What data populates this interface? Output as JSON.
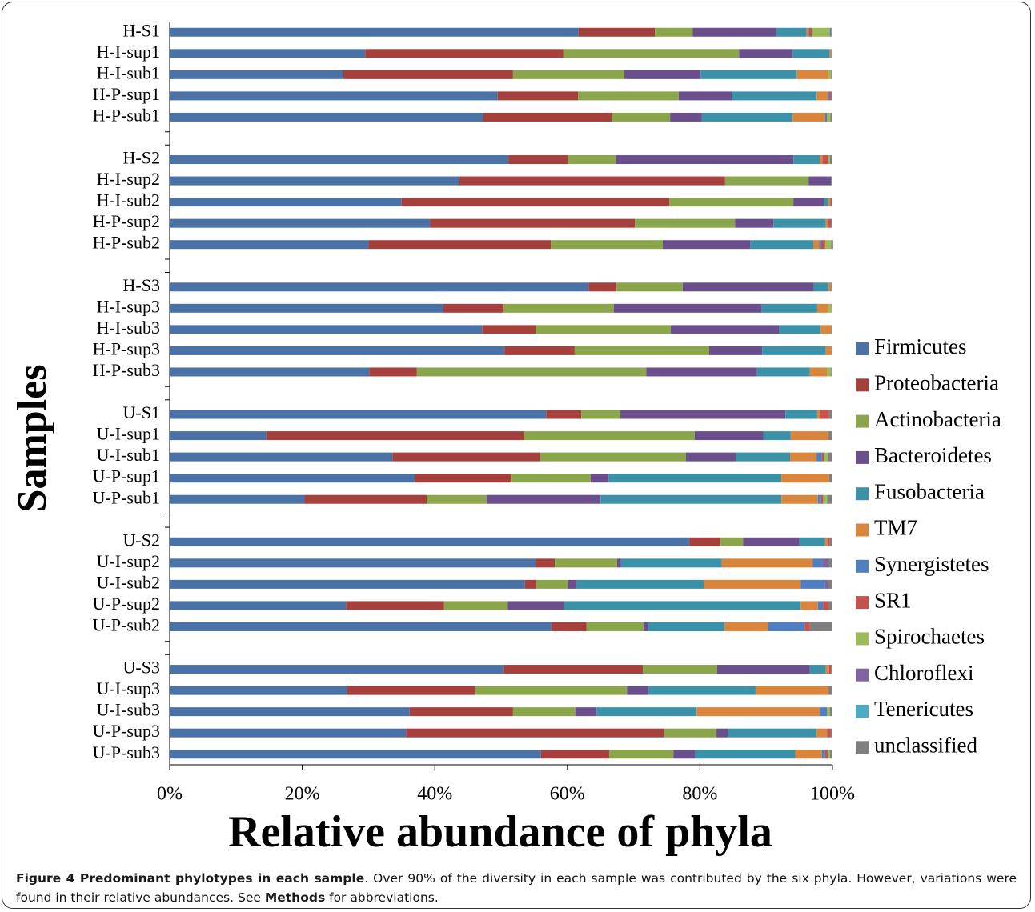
{
  "chart_data": {
    "type": "stacked_barh",
    "xlabel": "Relative abundance of phyla",
    "ylabel": "Samples",
    "categories": [
      "H-S1",
      "H-I-sup1",
      "H-I-sub1",
      "H-P-sup1",
      "H-P-sub1",
      null,
      "H-S2",
      "H-I-sup2",
      "H-I-sub2",
      "H-P-sup2",
      "H-P-sub2",
      null,
      "H-S3",
      "H-I-sup3",
      "H-I-sub3",
      "H-P-sup3",
      "H-P-sub3",
      null,
      "U-S1",
      "U-I-sup1",
      "U-I-sub1",
      "U-P-sup1",
      "U-P-sub1",
      null,
      "U-S2",
      "U-I-sup2",
      "U-I-sub2",
      "U-P-sup2",
      "U-P-sub2",
      null,
      "U-S3",
      "U-I-sup3",
      "U-I-sub3",
      "U-P-sup3",
      "U-P-sub3"
    ],
    "xlim": [
      0,
      100
    ],
    "xticks": [
      {
        "value": 0,
        "label": "0%"
      },
      {
        "value": 20,
        "label": "20%"
      },
      {
        "value": 40,
        "label": "40%"
      },
      {
        "value": 60,
        "label": "60%"
      },
      {
        "value": 80,
        "label": "80%"
      },
      {
        "value": 100,
        "label": "100%"
      }
    ],
    "legend": "right",
    "series": [
      {
        "name": "Firmicutes",
        "color": "#4a72a6",
        "values": [
          61.7,
          29.5,
          26.2,
          49.5,
          47.3,
          null,
          51.1,
          43.7,
          35.0,
          39.3,
          30.0,
          null,
          63.2,
          41.3,
          47.2,
          50.5,
          30.1,
          null,
          56.8,
          14.6,
          33.6,
          37.0,
          20.3,
          null,
          78.4,
          55.2,
          53.6,
          26.6,
          57.6,
          null,
          50.4,
          26.8,
          36.2,
          35.7,
          56.0
        ]
      },
      {
        "name": "Proteobacteria",
        "color": "#a5403d",
        "values": [
          11.5,
          29.9,
          25.6,
          12.1,
          19.4,
          null,
          9.0,
          40.1,
          40.4,
          30.9,
          27.5,
          null,
          4.2,
          9.1,
          8.0,
          10.6,
          7.2,
          null,
          5.3,
          38.9,
          22.3,
          14.6,
          18.5,
          null,
          4.7,
          2.9,
          1.7,
          14.8,
          5.3,
          null,
          21.0,
          19.3,
          15.6,
          38.9,
          10.3
        ]
      },
      {
        "name": "Actinobacteria",
        "color": "#8aa54a",
        "values": [
          5.7,
          26.5,
          16.8,
          15.2,
          8.8,
          null,
          7.2,
          12.6,
          18.7,
          15.1,
          16.9,
          null,
          10.0,
          16.6,
          20.4,
          20.3,
          34.6,
          null,
          5.9,
          25.7,
          22.0,
          11.9,
          9.0,
          null,
          3.4,
          9.4,
          4.8,
          9.6,
          8.6,
          null,
          11.2,
          22.9,
          9.4,
          7.9,
          9.7
        ]
      },
      {
        "name": "Bacteroidetes",
        "color": "#6a4f8c",
        "values": [
          12.6,
          8.1,
          11.5,
          8.0,
          4.8,
          null,
          26.8,
          3.4,
          4.6,
          5.8,
          13.2,
          null,
          19.8,
          22.3,
          16.4,
          8.0,
          16.7,
          null,
          24.9,
          10.4,
          7.5,
          2.7,
          17.2,
          null,
          8.5,
          0.6,
          1.3,
          8.5,
          0.7,
          null,
          14.0,
          3.2,
          3.2,
          1.7,
          3.3
        ]
      },
      {
        "name": "Fusobacteria",
        "color": "#3b92a8",
        "values": [
          4.6,
          5.6,
          14.5,
          12.8,
          13.7,
          null,
          4.0,
          0,
          0.7,
          7.9,
          9.5,
          null,
          2.2,
          8.4,
          6.2,
          9.6,
          8.0,
          null,
          4.8,
          4.1,
          8.2,
          26.1,
          27.3,
          null,
          3.9,
          15.2,
          19.2,
          35.7,
          11.5,
          null,
          2.4,
          16.2,
          15.1,
          13.4,
          15.1
        ]
      },
      {
        "name": "TM7",
        "color": "#d9853b",
        "values": [
          0.3,
          0.3,
          4.8,
          1.7,
          4.9,
          null,
          0.4,
          0,
          0.3,
          0.3,
          0.9,
          null,
          0.4,
          1.7,
          1.6,
          0.9,
          2.6,
          null,
          0.4,
          5.7,
          4.0,
          7.2,
          5.5,
          null,
          0.4,
          13.7,
          14.6,
          2.6,
          6.6,
          null,
          0.5,
          11.0,
          18.6,
          1.6,
          4.0
        ]
      },
      {
        "name": "Synergistetes",
        "color": "#4f7fc1",
        "values": [
          0.1,
          0,
          0,
          0.2,
          0.3,
          null,
          0,
          0,
          0,
          0,
          0.3,
          null,
          0,
          0,
          0,
          0,
          0,
          null,
          0,
          0,
          0.8,
          0,
          0.5,
          null,
          0,
          1.5,
          3.7,
          0.8,
          5.5,
          null,
          0,
          0,
          1.1,
          0,
          0.5
        ]
      },
      {
        "name": "SR1",
        "color": "#c8504d",
        "values": [
          0.4,
          0,
          0,
          0.2,
          0,
          null,
          0.8,
          0,
          0.2,
          0.4,
          0.6,
          null,
          0,
          0,
          0,
          0,
          0,
          null,
          1.4,
          0,
          0.3,
          0,
          0.3,
          null,
          0.3,
          0,
          0,
          0.8,
          0.8,
          null,
          0.3,
          0,
          0,
          0.5,
          0.4
        ]
      },
      {
        "name": "Spirochaetes",
        "color": "#9bbb59",
        "values": [
          2.7,
          0,
          0.4,
          0,
          0.5,
          null,
          0.3,
          0,
          0,
          0,
          0.9,
          null,
          0,
          0.5,
          0,
          0,
          0.6,
          null,
          0,
          0,
          0.6,
          0,
          0.6,
          null,
          0,
          0,
          0,
          0,
          0,
          null,
          0,
          0,
          0.4,
          0,
          0.3
        ]
      },
      {
        "name": "Chloroflexi",
        "color": "#8064a2",
        "values": [
          0.1,
          0,
          0,
          0,
          0,
          null,
          0,
          0,
          0,
          0,
          0,
          null,
          0,
          0,
          0,
          0,
          0,
          null,
          0,
          0,
          0,
          0,
          0,
          null,
          0,
          0.8,
          0.4,
          0,
          0,
          null,
          0,
          0,
          0,
          0,
          0
        ]
      },
      {
        "name": "Tenericutes",
        "color": "#4bacc6",
        "values": [
          0.1,
          0,
          0,
          0,
          0,
          null,
          0,
          0,
          0,
          0,
          0,
          null,
          0,
          0,
          0,
          0,
          0,
          null,
          0,
          0,
          0,
          0,
          0,
          null,
          0,
          0,
          0,
          0,
          0,
          null,
          0,
          0,
          0,
          0,
          0
        ]
      },
      {
        "name": "unclassified",
        "color": "#7f7f7f",
        "values": [
          0.2,
          0.1,
          0.2,
          0.3,
          0.3,
          null,
          0.4,
          0.2,
          0.1,
          0.3,
          0.3,
          null,
          0.2,
          0.1,
          0.2,
          0.1,
          0.2,
          null,
          0.5,
          0.6,
          0.7,
          0.5,
          0.8,
          null,
          0.4,
          0.6,
          0.7,
          0.6,
          3.4,
          null,
          0.2,
          0.6,
          0.4,
          0.3,
          0.4
        ]
      }
    ]
  },
  "caption": {
    "title": "Figure 4 Predominant phylotypes in each sample",
    "text": ". Over 90% of the diversity in each sample was contributed by the six phyla. However, variations were found in their relative abundances. See ",
    "bold": "Methods",
    "end": " for abbreviations."
  }
}
